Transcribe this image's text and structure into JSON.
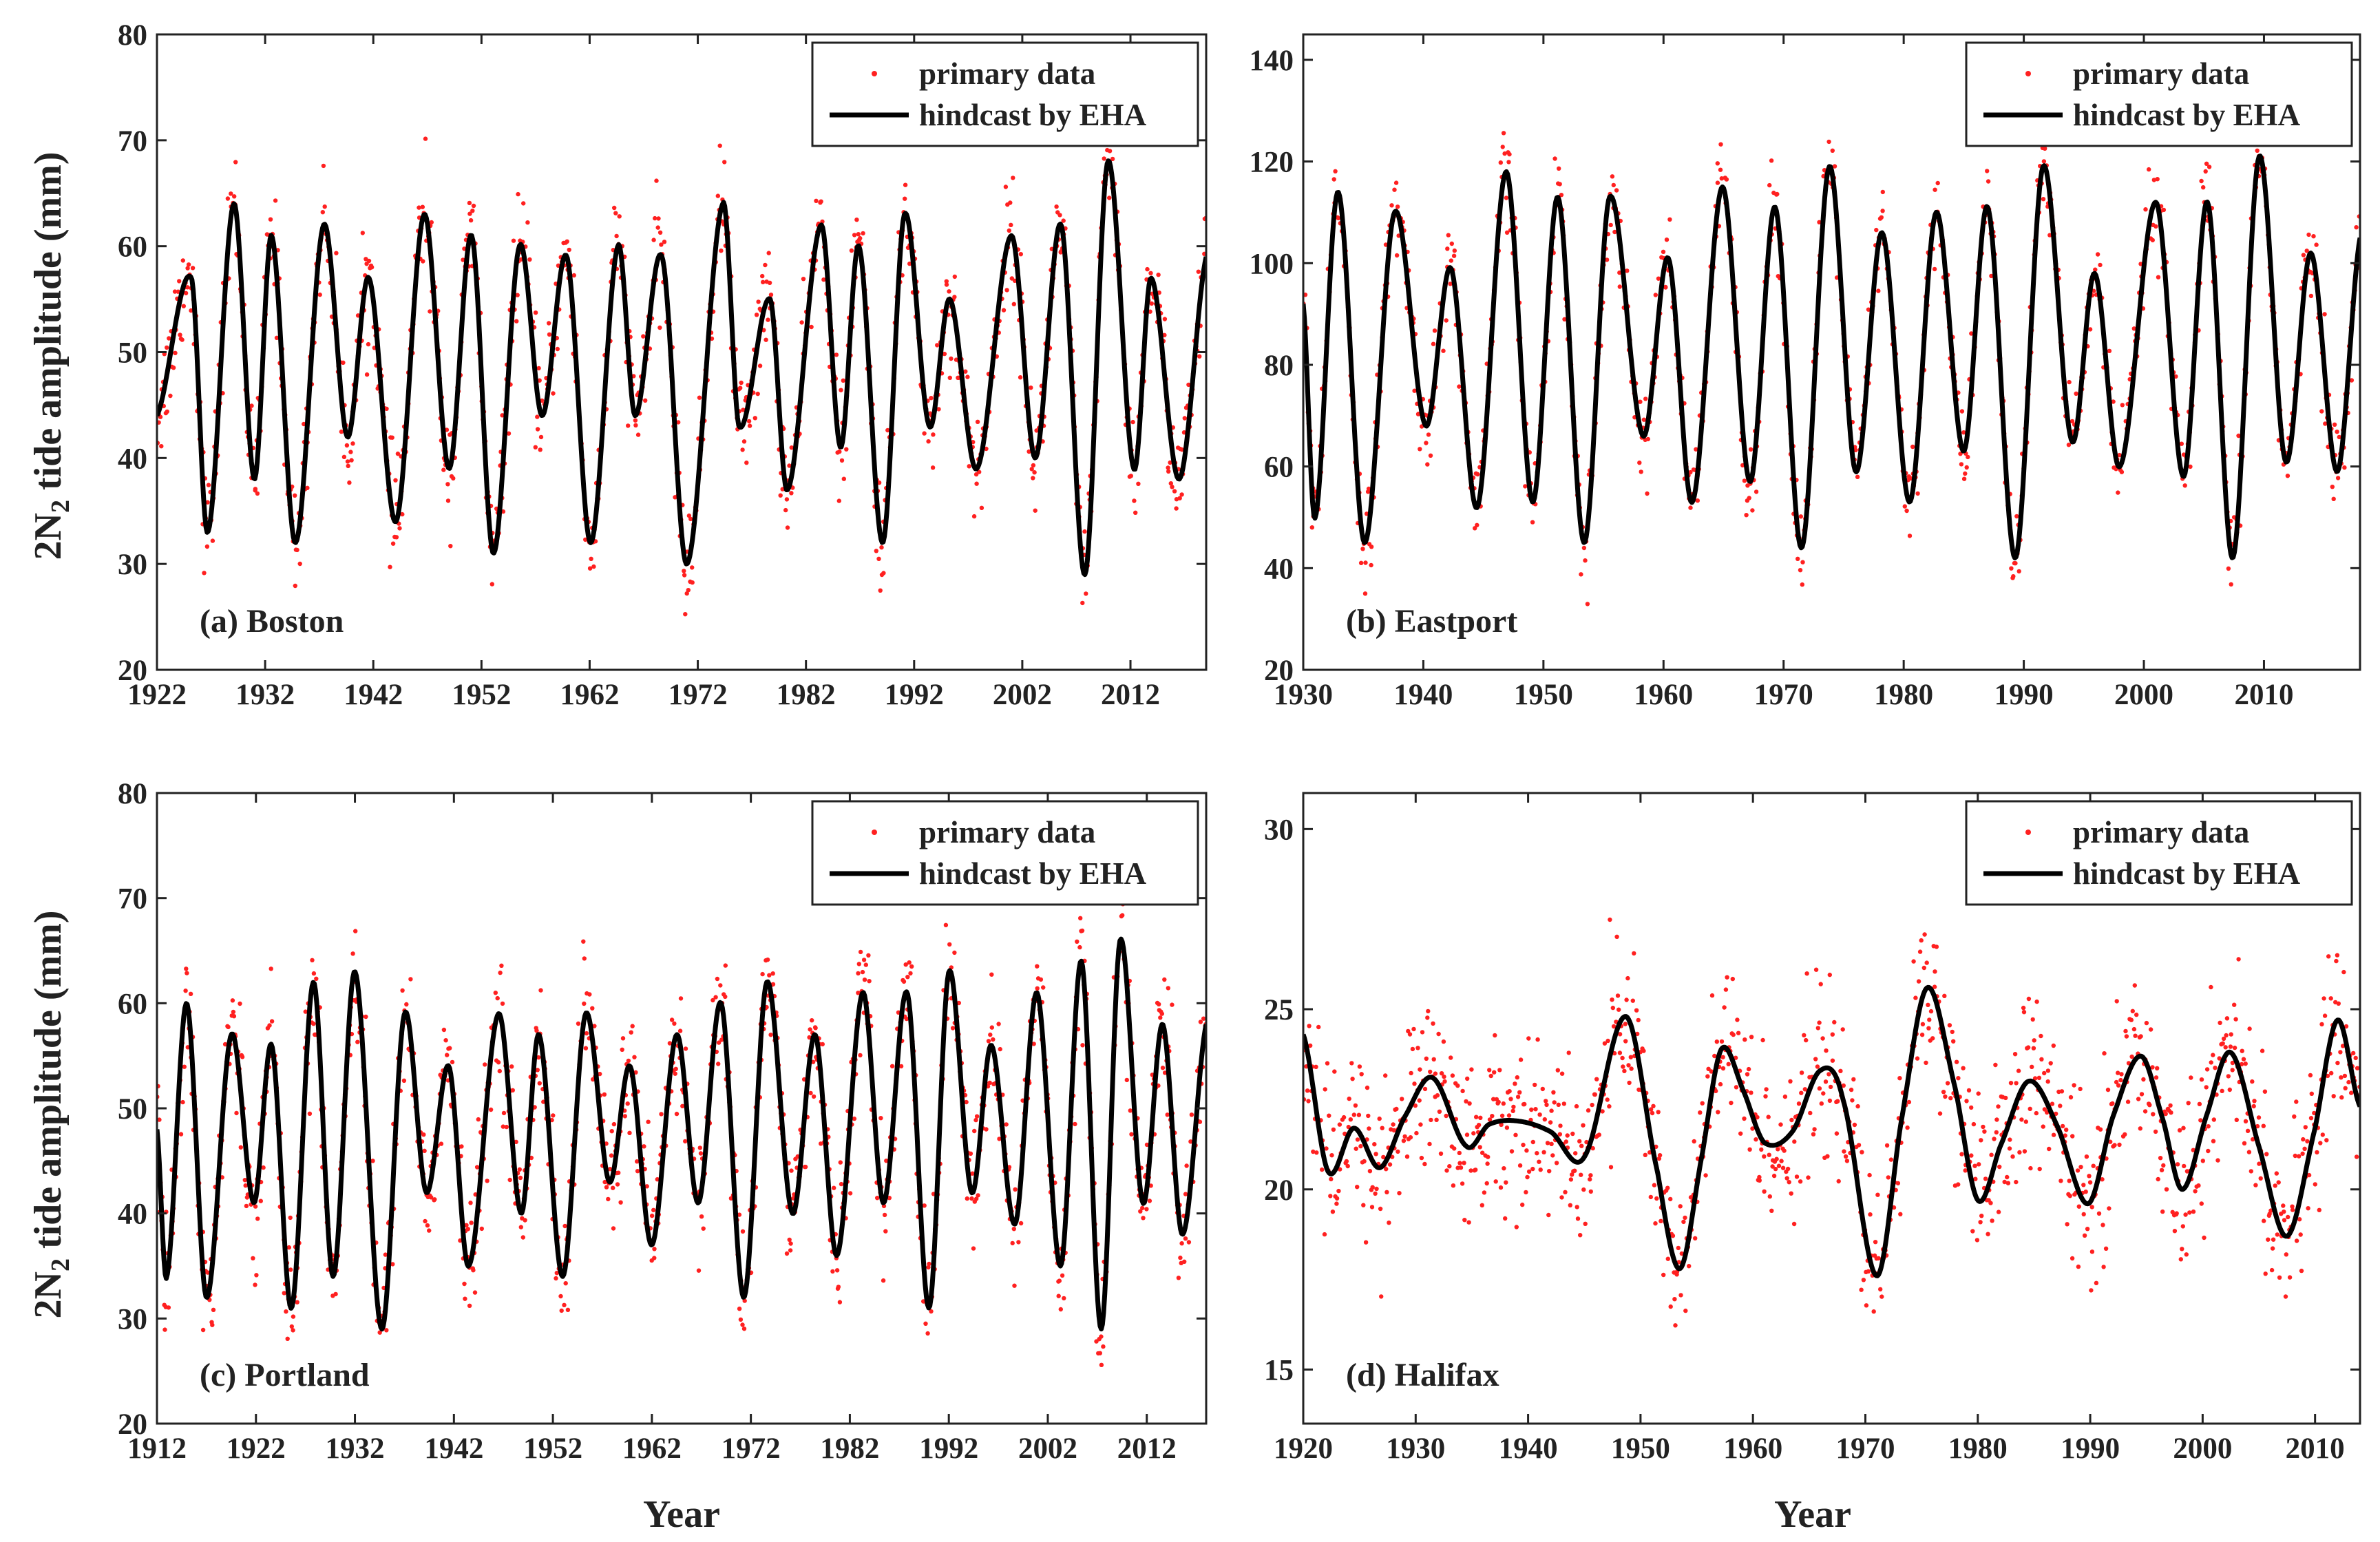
{
  "figure": {
    "ylabel_prefix": "2N",
    "ylabel_subscript": "2",
    "ylabel_suffix": " tide amplitude (mm)",
    "xlabel": "Year"
  },
  "legend": {
    "points": "primary data",
    "line": "hindcast by EHA"
  },
  "colors": {
    "points": "#ff2020",
    "line": "#000000",
    "axes": "#222222"
  },
  "chart_data": [
    {
      "id": "a",
      "type": "scatter",
      "label": "(a) Boston",
      "xlim": [
        1922,
        2019
      ],
      "ylim": [
        20,
        80
      ],
      "xticks": [
        1922,
        1932,
        1942,
        1952,
        1962,
        1972,
        1982,
        1992,
        2002,
        2012
      ],
      "yticks": [
        20,
        30,
        40,
        50,
        60,
        70,
        80
      ],
      "series": [
        {
          "name": "primary data",
          "kind": "points"
        },
        {
          "name": "hindcast by EHA",
          "kind": "line",
          "x": [
            1922.0,
            1925.2,
            1926.7,
            1929.1,
            1931.0,
            1932.6,
            1934.8,
            1937.4,
            1939.6,
            1941.6,
            1944.1,
            1946.7,
            1949.0,
            1951.1,
            1953.1,
            1955.5,
            1957.6,
            1959.9,
            1962.1,
            1964.6,
            1966.2,
            1968.7,
            1971.0,
            1974.3,
            1975.8,
            1978.7,
            1980.3,
            1983.4,
            1985.2,
            1986.9,
            1989.1,
            1991.1,
            1993.4,
            1995.3,
            1997.8,
            2001.0,
            2003.2,
            2005.6,
            2007.8,
            2009.9,
            2012.3,
            2013.9,
            2016.5,
            2019.0
          ],
          "y": [
            44,
            57,
            33,
            64,
            38,
            61,
            32,
            62,
            42,
            57,
            34,
            63,
            39,
            61,
            31,
            60,
            44,
            59,
            32,
            60,
            44,
            59,
            30,
            64,
            43,
            55,
            37,
            62,
            41,
            60,
            32,
            63,
            43,
            55,
            39,
            61,
            40,
            62,
            29,
            68,
            39,
            57,
            38,
            59
          ]
        }
      ],
      "points_noise": 2.6
    },
    {
      "id": "b",
      "type": "scatter",
      "label": "(b) Eastport",
      "xlim": [
        1930,
        2018
      ],
      "ylim": [
        20,
        145
      ],
      "xticks": [
        1930,
        1940,
        1950,
        1960,
        1970,
        1980,
        1990,
        2000,
        2010
      ],
      "yticks": [
        20,
        40,
        60,
        80,
        100,
        120,
        140
      ],
      "series": [
        {
          "name": "primary data",
          "kind": "points"
        },
        {
          "name": "hindcast by EHA",
          "kind": "line",
          "x": [
            1930.0,
            1931.0,
            1932.9,
            1935.1,
            1937.6,
            1940.2,
            1942.3,
            1944.5,
            1946.9,
            1949.1,
            1951.2,
            1953.4,
            1955.5,
            1958.3,
            1960.4,
            1962.4,
            1964.9,
            1967.2,
            1969.3,
            1971.5,
            1973.8,
            1976.0,
            1978.2,
            1980.5,
            1982.7,
            1985.0,
            1987.0,
            1989.3,
            1991.6,
            1994.0,
            1995.9,
            1998.0,
            2001.0,
            2003.3,
            2005.3,
            2007.4,
            2009.6,
            2011.8,
            2013.9,
            2016.1,
            2018.0
          ],
          "y": [
            92,
            50,
            114,
            45,
            110,
            68,
            99,
            52,
            118,
            53,
            113,
            45,
            113,
            66,
            101,
            53,
            115,
            57,
            111,
            44,
            119,
            59,
            106,
            53,
            110,
            63,
            111,
            42,
            119,
            65,
            98,
            60,
            112,
            58,
            112,
            42,
            121,
            61,
            102,
            59,
            105
          ]
        }
      ],
      "points_noise": 4.5
    },
    {
      "id": "c",
      "type": "scatter",
      "label": "(c) Portland",
      "xlim": [
        1912,
        2018
      ],
      "ylim": [
        20,
        80
      ],
      "xticks": [
        1912,
        1922,
        1932,
        1942,
        1952,
        1962,
        1972,
        1982,
        1992,
        2002,
        2012
      ],
      "yticks": [
        20,
        30,
        40,
        50,
        60,
        70,
        80
      ],
      "series": [
        {
          "name": "primary data",
          "kind": "points"
        },
        {
          "name": "hindcast by EHA",
          "kind": "line",
          "x": [
            1912.0,
            1913.0,
            1915.0,
            1917.0,
            1919.5,
            1921.8,
            1923.6,
            1925.6,
            1927.8,
            1929.8,
            1932.0,
            1934.7,
            1937.0,
            1939.2,
            1941.5,
            1943.5,
            1946.5,
            1948.8,
            1950.6,
            1953.0,
            1955.3,
            1957.7,
            1959.8,
            1962.0,
            1964.5,
            1966.7,
            1969.0,
            1971.3,
            1973.6,
            1976.2,
            1978.5,
            1980.7,
            1983.3,
            1985.4,
            1987.8,
            1990.0,
            1992.0,
            1994.3,
            1996.3,
            1998.7,
            2000.9,
            2003.3,
            2005.4,
            2007.4,
            2009.3,
            2011.6,
            2013.6,
            2015.6,
            2018.0
          ],
          "y": [
            48,
            34,
            60,
            32,
            57,
            41,
            56,
            31,
            62,
            34,
            63,
            29,
            59,
            42,
            54,
            35,
            59,
            40,
            57,
            34,
            59,
            43,
            54,
            37,
            57,
            41,
            60,
            32,
            62,
            40,
            57,
            36,
            61,
            41,
            61,
            31,
            63,
            42,
            56,
            39,
            61,
            35,
            64,
            29,
            66,
            41,
            58,
            38,
            58
          ]
        }
      ],
      "points_noise": 3.0
    },
    {
      "id": "d",
      "type": "scatter",
      "label": "(d) Halifax",
      "xlim": [
        1920,
        2014
      ],
      "ylim": [
        13.5,
        31
      ],
      "xticks": [
        1920,
        1930,
        1940,
        1950,
        1960,
        1970,
        1980,
        1990,
        2000,
        2010
      ],
      "yticks": [
        15,
        20,
        25,
        30
      ],
      "series": [
        {
          "name": "primary data",
          "kind": "points"
        },
        {
          "name": "hindcast by EHA",
          "kind": "line",
          "x": [
            1920.0,
            1922.2,
            1924.5,
            1926.8,
            1929.0,
            1931.5,
            1934.5,
            1936.5,
            1939.0,
            1942.0,
            1945.0,
            1948.7,
            1951.5,
            1953.5,
            1955.5,
            1957.2,
            1959.2,
            1961.0,
            1963.5,
            1966.0,
            1968.0,
            1971.0,
            1973.2,
            1975.5,
            1978.0,
            1980.0,
            1982.0,
            1984.5,
            1987.0,
            1989.8,
            1992.0,
            1994.5,
            1996.5,
            1998.2,
            2000.4,
            2002.5,
            2005.0,
            2007.5,
            2010.0,
            2012.0,
            2014.0
          ],
          "y": [
            24.3,
            20.5,
            21.7,
            20.6,
            22.0,
            23.1,
            21.2,
            21.8,
            21.9,
            21.6,
            20.9,
            24.8,
            20.5,
            17.8,
            21.0,
            23.9,
            22.7,
            21.3,
            21.6,
            23.3,
            22.5,
            17.6,
            21.9,
            25.6,
            22.8,
            19.7,
            21.2,
            23.0,
            21.8,
            19.6,
            22.0,
            23.7,
            21.9,
            20.0,
            22.1,
            23.8,
            21.2,
            18.7,
            21.7,
            24.7,
            22.3
          ]
        }
      ],
      "points_noise": 1.15
    }
  ]
}
